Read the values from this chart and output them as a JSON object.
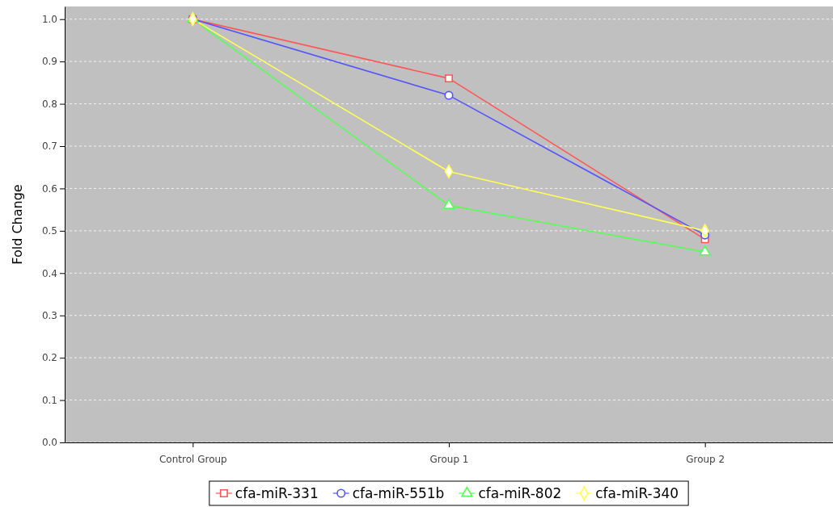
{
  "chart_data": {
    "type": "line",
    "ylabel": "Fold Change",
    "categories": [
      "Control Group",
      "Group 1",
      "Group 2"
    ],
    "ylim": [
      0,
      1.03
    ],
    "yticks": [
      {
        "value": 0,
        "label": "0.0"
      },
      {
        "value": 0.1,
        "label": "0.1"
      },
      {
        "value": 0.2,
        "label": "0.2"
      },
      {
        "value": 0.3,
        "label": "0.3"
      },
      {
        "value": 0.4,
        "label": "0.4"
      },
      {
        "value": 0.5,
        "label": "0.5"
      },
      {
        "value": 0.6,
        "label": "0.6"
      },
      {
        "value": 0.7,
        "label": "0.7"
      },
      {
        "value": 0.8,
        "label": "0.8"
      },
      {
        "value": 0.9,
        "label": "0.9"
      },
      {
        "value": 1,
        "label": "1.0"
      }
    ],
    "grid": "y",
    "legend": "bottom",
    "series": [
      {
        "name": "cfa-miR-331",
        "color": "#ff5555",
        "marker": "square",
        "values": [
          1,
          0.86,
          0.48
        ]
      },
      {
        "name": "cfa-miR-551b",
        "color": "#5555ff",
        "marker": "circle",
        "values": [
          1,
          0.82,
          0.49
        ]
      },
      {
        "name": "cfa-miR-802",
        "color": "#55ff55",
        "marker": "triangle",
        "values": [
          1,
          0.56,
          0.45
        ]
      },
      {
        "name": "cfa-miR-340",
        "color": "#ffff55",
        "marker": "diamond",
        "values": [
          1,
          0.64,
          0.5
        ]
      }
    ]
  }
}
